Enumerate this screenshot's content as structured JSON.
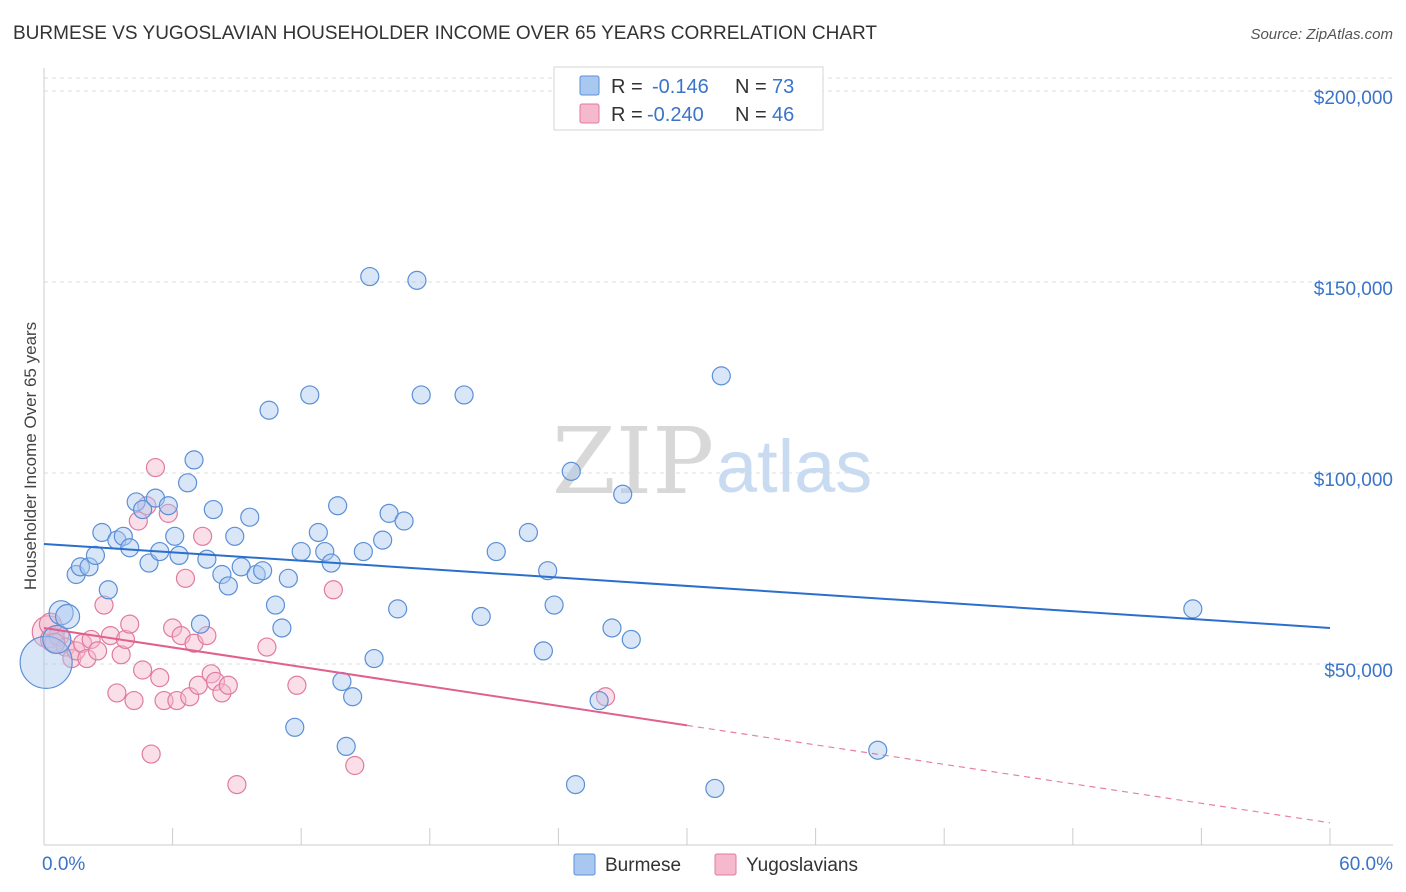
{
  "header": {
    "title": "BURMESE VS YUGOSLAVIAN HOUSEHOLDER INCOME OVER 65 YEARS CORRELATION CHART",
    "source": "Source: ZipAtlas.com"
  },
  "watermark": {
    "zip": "ZIP",
    "atlas": "atlas"
  },
  "legend": {
    "rows": [
      {
        "r_label": "R =",
        "r_value": "-0.146",
        "n_label": "N =",
        "n_value": "73"
      },
      {
        "r_label": "R =",
        "r_value": "-0.240",
        "n_label": "N =",
        "n_value": "46"
      }
    ]
  },
  "bottom_legend": {
    "items": [
      "Burmese",
      "Yugoslavians"
    ]
  },
  "colors": {
    "burmese_fill": "#a9c8ef",
    "burmese_stroke": "#5b8fd6",
    "burmese_line": "#2b6fcc",
    "yugo_fill": "#f5b8cc",
    "yugo_stroke": "#e07ba0",
    "yugo_line": "#e0608e",
    "grid": "#dddddd",
    "tick_text": "#3a74c8"
  },
  "chart_data": {
    "type": "scatter",
    "title": "BURMESE VS YUGOSLAVIAN HOUSEHOLDER INCOME OVER 65 YEARS CORRELATION CHART",
    "xlabel": "",
    "ylabel": "Householder Income Over 65 years",
    "xlim": [
      0,
      60
    ],
    "ylim": [
      0,
      210000
    ],
    "x_tick_labels": [
      "0.0%",
      "60.0%"
    ],
    "y_ticks": [
      50000,
      100000,
      150000,
      200000
    ],
    "y_tick_labels": [
      "$50,000",
      "$100,000",
      "$150,000",
      "$200,000"
    ],
    "grid": true,
    "legend_position": "top-center",
    "series": [
      {
        "name": "Burmese",
        "r": -0.146,
        "n": 73,
        "trend": {
          "x": [
            0,
            60
          ],
          "y": [
            83000,
            61000
          ],
          "dashed_from": null
        },
        "points": [
          [
            0.1,
            52000,
            26
          ],
          [
            0.6,
            58000,
            14
          ],
          [
            0.8,
            65000,
            12
          ],
          [
            1.1,
            64000,
            12
          ],
          [
            1.5,
            75000,
            9
          ],
          [
            1.7,
            77000,
            9
          ],
          [
            2.1,
            77000,
            9
          ],
          [
            2.4,
            80000,
            9
          ],
          [
            2.7,
            86000,
            9
          ],
          [
            3.0,
            71000,
            9
          ],
          [
            3.4,
            84000,
            9
          ],
          [
            3.7,
            85000,
            9
          ],
          [
            4.0,
            82000,
            9
          ],
          [
            4.3,
            94000,
            9
          ],
          [
            4.6,
            92000,
            9
          ],
          [
            4.9,
            78000,
            9
          ],
          [
            5.2,
            95000,
            9
          ],
          [
            5.4,
            81000,
            9
          ],
          [
            5.8,
            93000,
            9
          ],
          [
            6.1,
            85000,
            9
          ],
          [
            6.3,
            80000,
            9
          ],
          [
            6.7,
            99000,
            9
          ],
          [
            7.0,
            105000,
            9
          ],
          [
            7.3,
            62000,
            9
          ],
          [
            7.6,
            79000,
            9
          ],
          [
            7.9,
            92000,
            9
          ],
          [
            8.3,
            75000,
            9
          ],
          [
            8.6,
            72000,
            9
          ],
          [
            8.9,
            85000,
            9
          ],
          [
            9.2,
            77000,
            9
          ],
          [
            9.6,
            90000,
            9
          ],
          [
            9.9,
            75000,
            9
          ],
          [
            10.2,
            76000,
            9
          ],
          [
            10.5,
            118000,
            9
          ],
          [
            10.8,
            67000,
            9
          ],
          [
            11.1,
            61000,
            9
          ],
          [
            11.4,
            74000,
            9
          ],
          [
            11.7,
            35000,
            9
          ],
          [
            12.0,
            81000,
            9
          ],
          [
            12.4,
            122000,
            9
          ],
          [
            12.8,
            86000,
            9
          ],
          [
            13.1,
            81000,
            9
          ],
          [
            13.4,
            78000,
            9
          ],
          [
            13.7,
            93000,
            9
          ],
          [
            13.9,
            47000,
            9
          ],
          [
            14.1,
            30000,
            9
          ],
          [
            14.4,
            43000,
            9
          ],
          [
            14.9,
            81000,
            9
          ],
          [
            15.2,
            153000,
            9
          ],
          [
            15.4,
            53000,
            9
          ],
          [
            15.8,
            84000,
            9
          ],
          [
            16.1,
            91000,
            9
          ],
          [
            16.5,
            66000,
            9
          ],
          [
            16.8,
            89000,
            9
          ],
          [
            17.4,
            152000,
            9
          ],
          [
            17.6,
            122000,
            9
          ],
          [
            19.6,
            122000,
            9
          ],
          [
            20.4,
            64000,
            9
          ],
          [
            21.1,
            81000,
            9
          ],
          [
            22.6,
            86000,
            9
          ],
          [
            23.3,
            55000,
            9
          ],
          [
            23.5,
            76000,
            9
          ],
          [
            23.8,
            67000,
            9
          ],
          [
            24.6,
            102000,
            9
          ],
          [
            24.8,
            20000,
            9
          ],
          [
            25.9,
            42000,
            9
          ],
          [
            26.5,
            61000,
            9
          ],
          [
            27.0,
            96000,
            9
          ],
          [
            27.4,
            58000,
            9
          ],
          [
            31.3,
            19000,
            9
          ],
          [
            31.6,
            127000,
            9
          ],
          [
            38.9,
            29000,
            9
          ],
          [
            53.6,
            66000,
            9
          ]
        ]
      },
      {
        "name": "Yugoslavians",
        "r": -0.24,
        "n": 46,
        "trend": {
          "x": [
            0,
            60
          ],
          "y": [
            61000,
            10000
          ],
          "dashed_from": 30
        },
        "points": [
          [
            0.2,
            60000,
            16
          ],
          [
            0.4,
            58000,
            12
          ],
          [
            0.7,
            59000,
            10
          ],
          [
            1.0,
            56000,
            9
          ],
          [
            1.3,
            53000,
            9
          ],
          [
            1.5,
            55000,
            9
          ],
          [
            1.8,
            57000,
            9
          ],
          [
            2.0,
            53000,
            9
          ],
          [
            2.2,
            58000,
            9
          ],
          [
            2.5,
            55000,
            9
          ],
          [
            2.8,
            67000,
            9
          ],
          [
            3.1,
            59000,
            9
          ],
          [
            3.4,
            44000,
            9
          ],
          [
            3.6,
            54000,
            9
          ],
          [
            3.8,
            58000,
            9
          ],
          [
            4.0,
            62000,
            9
          ],
          [
            4.2,
            42000,
            9
          ],
          [
            4.4,
            89000,
            9
          ],
          [
            4.6,
            50000,
            9
          ],
          [
            4.8,
            93000,
            9
          ],
          [
            5.0,
            28000,
            9
          ],
          [
            5.2,
            103000,
            9
          ],
          [
            5.4,
            48000,
            9
          ],
          [
            5.6,
            42000,
            9
          ],
          [
            5.8,
            91000,
            9
          ],
          [
            6.0,
            61000,
            9
          ],
          [
            6.2,
            42000,
            9
          ],
          [
            6.4,
            59000,
            9
          ],
          [
            6.6,
            74000,
            9
          ],
          [
            6.8,
            43000,
            9
          ],
          [
            7.0,
            57000,
            9
          ],
          [
            7.2,
            46000,
            9
          ],
          [
            7.4,
            85000,
            9
          ],
          [
            7.6,
            59000,
            9
          ],
          [
            7.8,
            49000,
            9
          ],
          [
            8.0,
            47000,
            9
          ],
          [
            8.3,
            44000,
            9
          ],
          [
            8.6,
            46000,
            9
          ],
          [
            9.0,
            20000,
            9
          ],
          [
            10.4,
            56000,
            9
          ],
          [
            11.8,
            46000,
            9
          ],
          [
            13.5,
            71000,
            9
          ],
          [
            14.5,
            25000,
            9
          ],
          [
            26.2,
            43000,
            9
          ],
          [
            0.3,
            62000,
            11
          ],
          [
            0.5,
            57000,
            10
          ]
        ]
      }
    ]
  }
}
